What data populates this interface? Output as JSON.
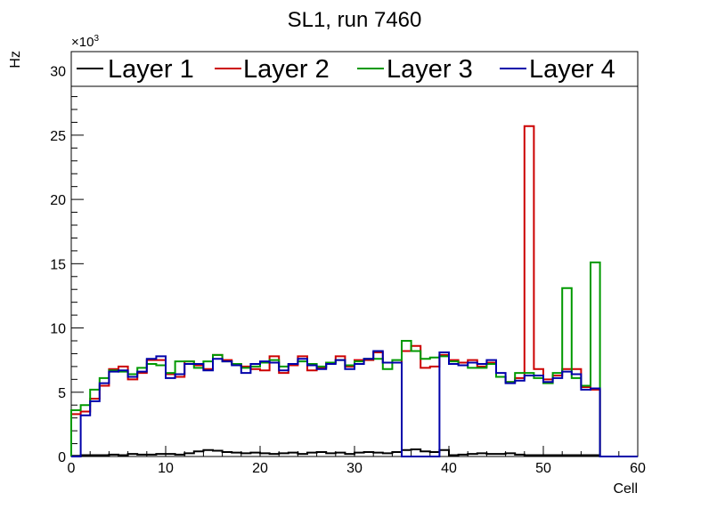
{
  "chart_data": {
    "type": "line",
    "title": "SL1, run 7460",
    "xlabel": "Cell",
    "ylabel": "Hz",
    "y_multiplier_label": "×10",
    "y_multiplier_exp": "3",
    "xlim": [
      0,
      60
    ],
    "ylim": [
      0,
      31.5
    ],
    "x_ticks": [
      0,
      10,
      20,
      30,
      40,
      50,
      60
    ],
    "y_ticks": [
      0,
      5,
      10,
      15,
      20,
      25,
      30
    ],
    "grid": false,
    "legend_position": "top",
    "bin_edges_start": 0,
    "bin_width": 1,
    "series": [
      {
        "name": "Layer 1",
        "color": "#000000",
        "values": [
          0.05,
          0.1,
          0.1,
          0.1,
          0.15,
          0.1,
          0.2,
          0.15,
          0.15,
          0.2,
          0.2,
          0.15,
          0.25,
          0.4,
          0.5,
          0.45,
          0.35,
          0.3,
          0.25,
          0.3,
          0.25,
          0.2,
          0.25,
          0.3,
          0.2,
          0.3,
          0.35,
          0.25,
          0.3,
          0.2,
          0.3,
          0.35,
          0.3,
          0.25,
          0.35,
          0.5,
          0.55,
          0.4,
          0.35,
          0.5,
          0.1,
          0.15,
          0.2,
          0.25,
          0.2,
          0.2,
          0.25,
          0.15,
          0.1,
          0.1,
          0.1,
          0.1,
          0.1,
          0.1,
          0.1,
          0.1,
          0,
          0,
          0,
          0
        ]
      },
      {
        "name": "Layer 2",
        "color": "#cc0000",
        "values": [
          3.3,
          3.5,
          4.5,
          5.5,
          6.8,
          7,
          6,
          6.5,
          7.5,
          7.5,
          6.4,
          6.2,
          7.4,
          7.1,
          6.8,
          7.9,
          7.5,
          7.2,
          7,
          6.8,
          6.7,
          7.8,
          6.5,
          7.1,
          7.8,
          6.7,
          6.9,
          7.3,
          7.8,
          7,
          7.5,
          7.5,
          8.1,
          7.3,
          7.3,
          8.2,
          8.6,
          6.9,
          7,
          7.9,
          7.5,
          7.3,
          7.5,
          7,
          7.3,
          6.2,
          5.8,
          6.1,
          25.7,
          6.8,
          6,
          6.3,
          6.8,
          6.8,
          5.4,
          5.2,
          0,
          0,
          0,
          0
        ]
      },
      {
        "name": "Layer 3",
        "color": "#009900",
        "values": [
          3.6,
          4,
          5.2,
          6.1,
          6.7,
          6.6,
          6.4,
          6.9,
          7.2,
          7.1,
          6.5,
          7.4,
          7.4,
          6.9,
          7.4,
          7.9,
          7.4,
          7.2,
          6.9,
          7,
          7.3,
          7.5,
          7,
          7.2,
          7.4,
          7.2,
          7,
          7.3,
          7.5,
          7.1,
          7.4,
          7.6,
          7.6,
          6.8,
          7.5,
          9,
          8.2,
          7.6,
          7.7,
          7.8,
          7.4,
          7.1,
          6.9,
          6.9,
          7.2,
          6.2,
          5.8,
          6.5,
          6.5,
          6.1,
          5.7,
          6.5,
          13.1,
          6.1,
          5.5,
          15.1,
          0,
          0,
          0,
          0
        ]
      },
      {
        "name": "Layer 4",
        "color": "#0000aa",
        "values": [
          0,
          3.2,
          4.3,
          5.7,
          6.6,
          6.7,
          6.2,
          6.6,
          7.6,
          7.8,
          6.1,
          6.4,
          7.2,
          7.2,
          6.7,
          7.6,
          7.4,
          7.1,
          6.5,
          7.2,
          7.4,
          7.3,
          6.7,
          7.2,
          7.6,
          7.1,
          6.8,
          7.2,
          7.5,
          6.8,
          7.2,
          7.6,
          8.2,
          7.3,
          7.3,
          0,
          0,
          0,
          0,
          8.1,
          7.2,
          7.1,
          7.3,
          7.2,
          7.5,
          6.5,
          5.7,
          5.9,
          6.3,
          6.3,
          5.8,
          6.1,
          6.6,
          6.4,
          5.2,
          5.3,
          0,
          0,
          0,
          0
        ]
      }
    ]
  }
}
